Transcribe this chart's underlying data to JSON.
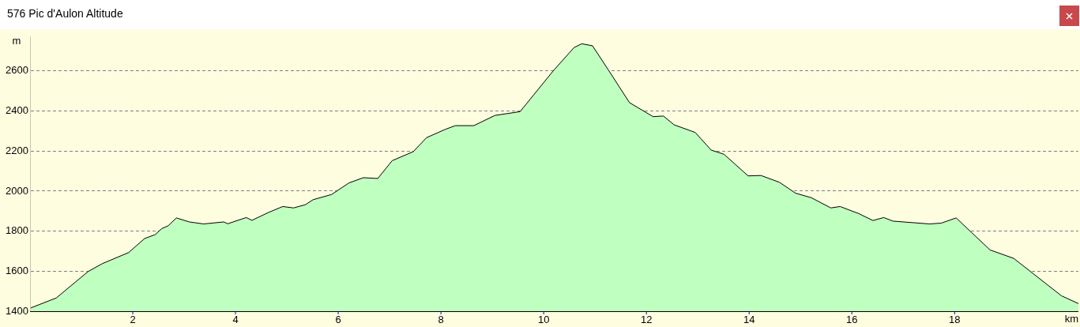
{
  "chart_data": {
    "type": "area",
    "title": "576 Pic d'Aulon Altitude",
    "xlabel": "km",
    "ylabel": "m",
    "x": [
      0,
      0.51,
      1.13,
      1.41,
      1.92,
      2.23,
      2.44,
      2.56,
      2.69,
      2.85,
      3.1,
      3.38,
      3.77,
      3.85,
      4.21,
      4.32,
      4.64,
      4.92,
      5.13,
      5.36,
      5.51,
      5.87,
      6.21,
      6.49,
      6.77,
      7.05,
      7.46,
      7.72,
      8.08,
      8.28,
      8.64,
      9.05,
      9.54,
      10.18,
      10.59,
      10.74,
      10.95,
      11.26,
      11.67,
      12.13,
      12.33,
      12.54,
      12.95,
      13.26,
      13.51,
      13.98,
      14.23,
      14.59,
      14.9,
      15.21,
      15.59,
      15.77,
      16.13,
      16.41,
      16.62,
      16.8,
      17.51,
      17.74,
      18.03,
      18.69,
      19.15,
      20.08,
      20.41
    ],
    "series": [
      {
        "color": "#000000",
        "values": [
          1415,
          1466,
          1598,
          1638,
          1693,
          1763,
          1783,
          1812,
          1827,
          1866,
          1846,
          1836,
          1846,
          1837,
          1868,
          1854,
          1893,
          1923,
          1916,
          1932,
          1957,
          1983,
          2041,
          2067,
          2063,
          2152,
          2197,
          2267,
          2308,
          2327,
          2327,
          2378,
          2397,
          2599,
          2717,
          2736,
          2726,
          2605,
          2442,
          2372,
          2375,
          2331,
          2293,
          2205,
          2184,
          2076,
          2078,
          2044,
          1990,
          1967,
          1916,
          1923,
          1888,
          1853,
          1868,
          1850,
          1836,
          1840,
          1866,
          1706,
          1664,
          1477,
          1438
        ]
      }
    ],
    "xlim": [
      0,
      20.41
    ],
    "ylim": [
      1400,
      2770
    ],
    "xticks": [
      2,
      4,
      6,
      8,
      10,
      12,
      14,
      16,
      18
    ],
    "yticks": [
      1400,
      1600,
      1800,
      2000,
      2200,
      2400,
      2600
    ],
    "grid": "y",
    "legend": false,
    "marker": "none",
    "line_style": "solid"
  }
}
